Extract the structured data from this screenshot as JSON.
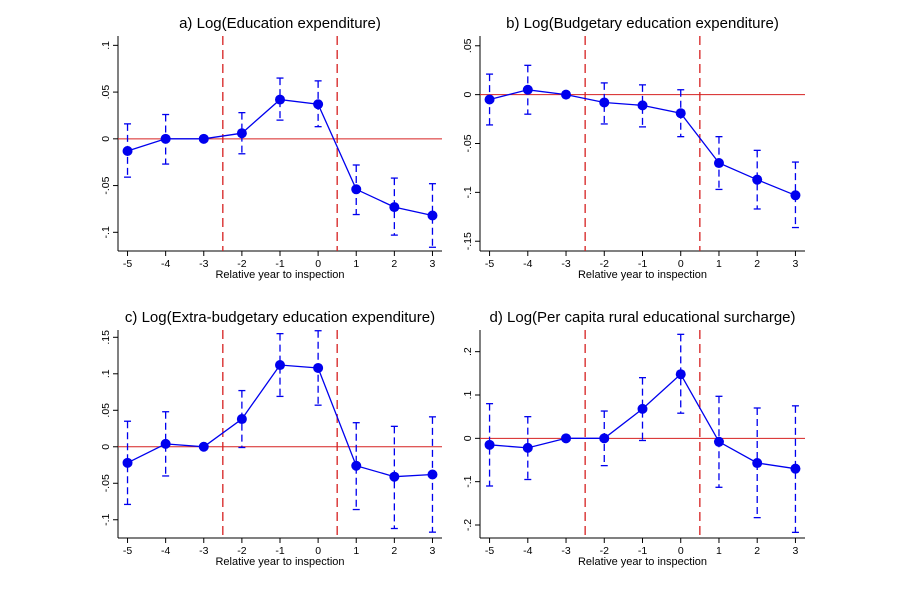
{
  "colors": {
    "series": "#0000ee",
    "zero_line": "#d62020",
    "event_line": "#d62020",
    "axis": "#000000"
  },
  "chart_data": [
    {
      "type": "line",
      "title": "a) Log(Education expenditure)",
      "xlabel": "Relative year to inspection",
      "ylabel": "",
      "x": [
        -5,
        -4,
        -3,
        -2,
        -1,
        0,
        1,
        2,
        3
      ],
      "x_ticks": [
        "-5",
        "-4",
        "-3",
        "-2",
        "-1",
        "0",
        "1",
        "2",
        "3"
      ],
      "y_ticks": [
        -0.1,
        -0.05,
        0,
        0.05,
        0.1
      ],
      "y_tick_labels": [
        "-.1",
        "-.05",
        "0",
        ".05",
        ".1"
      ],
      "ylim": [
        -0.12,
        0.11
      ],
      "xlim": [
        -5.25,
        3.25
      ],
      "event_lines_x": [
        -2.5,
        0.5
      ],
      "zero_line_y": 0,
      "grid": false,
      "series": [
        {
          "values": [
            -0.013,
            0.0,
            0.0,
            0.006,
            0.042,
            0.037,
            -0.054,
            -0.073,
            -0.082
          ],
          "ci_low": [
            -0.041,
            -0.027,
            0.0,
            -0.016,
            0.02,
            0.013,
            -0.081,
            -0.103,
            -0.116
          ],
          "ci_high": [
            0.016,
            0.026,
            0.0,
            0.028,
            0.065,
            0.062,
            -0.028,
            -0.042,
            -0.048
          ]
        }
      ]
    },
    {
      "type": "line",
      "title": "b) Log(Budgetary education expenditure)",
      "xlabel": "Relative year to inspection",
      "ylabel": "",
      "x": [
        -5,
        -4,
        -3,
        -2,
        -1,
        0,
        1,
        2,
        3
      ],
      "x_ticks": [
        "-5",
        "-4",
        "-3",
        "-2",
        "-1",
        "0",
        "1",
        "2",
        "3"
      ],
      "y_ticks": [
        -0.15,
        -0.1,
        -0.05,
        0,
        0.05
      ],
      "y_tick_labels": [
        "-.15",
        "-.1",
        "-.05",
        "0",
        ".05"
      ],
      "ylim": [
        -0.16,
        0.06
      ],
      "xlim": [
        -5.25,
        3.25
      ],
      "event_lines_x": [
        -2.5,
        0.5
      ],
      "zero_line_y": 0,
      "grid": false,
      "series": [
        {
          "values": [
            -0.005,
            0.005,
            0.0,
            -0.008,
            -0.011,
            -0.019,
            -0.07,
            -0.087,
            -0.103
          ],
          "ci_low": [
            -0.031,
            -0.02,
            0.0,
            -0.03,
            -0.033,
            -0.043,
            -0.097,
            -0.117,
            -0.136
          ],
          "ci_high": [
            0.021,
            0.03,
            0.0,
            0.012,
            0.01,
            0.005,
            -0.043,
            -0.057,
            -0.069
          ]
        }
      ]
    },
    {
      "type": "line",
      "title": "c) Log(Extra-budgetary education expenditure)",
      "xlabel": "Relative year to inspection",
      "ylabel": "",
      "x": [
        -5,
        -4,
        -3,
        -2,
        -1,
        0,
        1,
        2,
        3
      ],
      "x_ticks": [
        "-5",
        "-4",
        "-3",
        "-2",
        "-1",
        "0",
        "1",
        "2",
        "3"
      ],
      "y_ticks": [
        -0.1,
        -0.05,
        0,
        0.05,
        0.1,
        0.15
      ],
      "y_tick_labels": [
        "-.1",
        "-.05",
        "0",
        ".05",
        ".1",
        ".15"
      ],
      "ylim": [
        -0.125,
        0.16
      ],
      "xlim": [
        -5.25,
        3.25
      ],
      "event_lines_x": [
        -2.5,
        0.5
      ],
      "zero_line_y": 0,
      "grid": false,
      "series": [
        {
          "values": [
            -0.022,
            0.004,
            0.0,
            0.038,
            0.112,
            0.108,
            -0.026,
            -0.041,
            -0.038
          ],
          "ci_low": [
            -0.079,
            -0.04,
            0.0,
            -0.001,
            0.069,
            0.057,
            -0.086,
            -0.112,
            -0.117
          ],
          "ci_high": [
            0.035,
            0.048,
            0.0,
            0.077,
            0.155,
            0.159,
            0.033,
            0.028,
            0.041
          ]
        }
      ]
    },
    {
      "type": "line",
      "title": "d) Log(Per capita rural educational surcharge)",
      "xlabel": "Relative year to inspection",
      "ylabel": "",
      "x": [
        -5,
        -4,
        -3,
        -2,
        -1,
        0,
        1,
        2,
        3
      ],
      "x_ticks": [
        "-5",
        "-4",
        "-3",
        "-2",
        "-1",
        "0",
        "1",
        "2",
        "3"
      ],
      "y_ticks": [
        -0.2,
        -0.1,
        0,
        0.1,
        0.2
      ],
      "y_tick_labels": [
        "-.2",
        "-.1",
        "0",
        ".1",
        ".2"
      ],
      "ylim": [
        -0.23,
        0.25
      ],
      "xlim": [
        -5.25,
        3.25
      ],
      "event_lines_x": [
        -2.5,
        0.5
      ],
      "zero_line_y": 0,
      "grid": false,
      "series": [
        {
          "values": [
            -0.015,
            -0.022,
            0.0,
            0.0,
            0.068,
            0.148,
            -0.008,
            -0.057,
            -0.07
          ],
          "ci_low": [
            -0.11,
            -0.095,
            0.0,
            -0.063,
            -0.005,
            0.058,
            -0.113,
            -0.183,
            -0.217
          ],
          "ci_high": [
            0.08,
            0.05,
            0.0,
            0.063,
            0.14,
            0.24,
            0.097,
            0.07,
            0.075
          ]
        }
      ]
    }
  ]
}
